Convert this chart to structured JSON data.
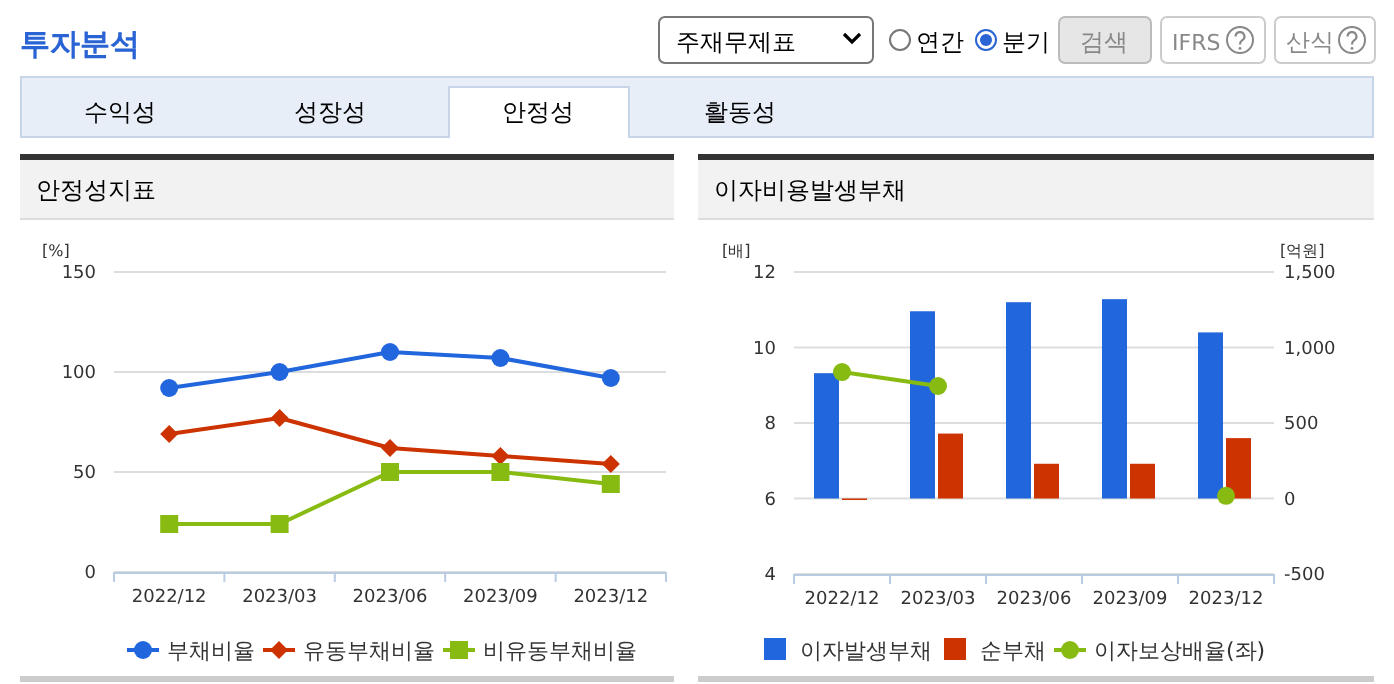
{
  "chart_data": [
    {
      "type": "other",
      "title": "투자분석",
      "annotations": [
        "주재무제표",
        "연간",
        "분기",
        "검색",
        "IFRS",
        "산식",
        "수익성",
        "성장성",
        "안정성",
        "활동성"
      ]
    },
    {
      "type": "line",
      "title": "안정성지표",
      "ylabel": "[%]",
      "categories": [
        "2022/12",
        "2023/03",
        "2023/06",
        "2023/09",
        "2023/12"
      ],
      "ylim": [
        0,
        150
      ],
      "yticks": [
        0,
        50,
        100,
        150
      ],
      "grid": "y",
      "legend": "bottom",
      "series": [
        {
          "name": "부채비율",
          "color": "#2266dd",
          "marker": "circle",
          "values": [
            92,
            100,
            110,
            107,
            97
          ]
        },
        {
          "name": "유동부채비율",
          "color": "#cc3300",
          "marker": "diamond",
          "values": [
            69,
            77,
            62,
            58,
            54
          ]
        },
        {
          "name": "비유동부채비율",
          "color": "#88bb11",
          "marker": "square",
          "values": [
            24,
            24,
            50,
            50,
            44
          ]
        }
      ]
    },
    {
      "type": "bar",
      "title": "이자비용발생부채",
      "ylabel": "[배]",
      "y2label": "[억원]",
      "categories": [
        "2022/12",
        "2023/03",
        "2023/06",
        "2023/09",
        "2023/12"
      ],
      "ylim": [
        4,
        12
      ],
      "yticks": [
        4,
        6,
        8,
        10,
        12
      ],
      "y2lim": [
        -500,
        1500
      ],
      "y2ticks": [
        -500,
        0,
        {
          "value": 500,
          "label": "500"
        },
        {
          "value": 1000,
          "label": "1,000"
        },
        {
          "value": 1500,
          "label": "1,500"
        }
      ],
      "grid": "y",
      "legend": "bottom",
      "series": [
        {
          "name": "이자발생부채",
          "type": "bar",
          "axis": "y2",
          "color": "#2266dd",
          "values": [
            830,
            1240,
            1300,
            1320,
            1100
          ]
        },
        {
          "name": "순부채",
          "type": "bar",
          "axis": "y2",
          "color": "#cc3300",
          "values": [
            -10,
            430,
            230,
            230,
            400
          ]
        },
        {
          "name": "이자보상배율(좌)",
          "type": "line",
          "axis": "y",
          "color": "#88bb11",
          "marker": "circle",
          "values": [
            9.35,
            8.98,
            null,
            null,
            6.07
          ]
        }
      ]
    }
  ]
}
